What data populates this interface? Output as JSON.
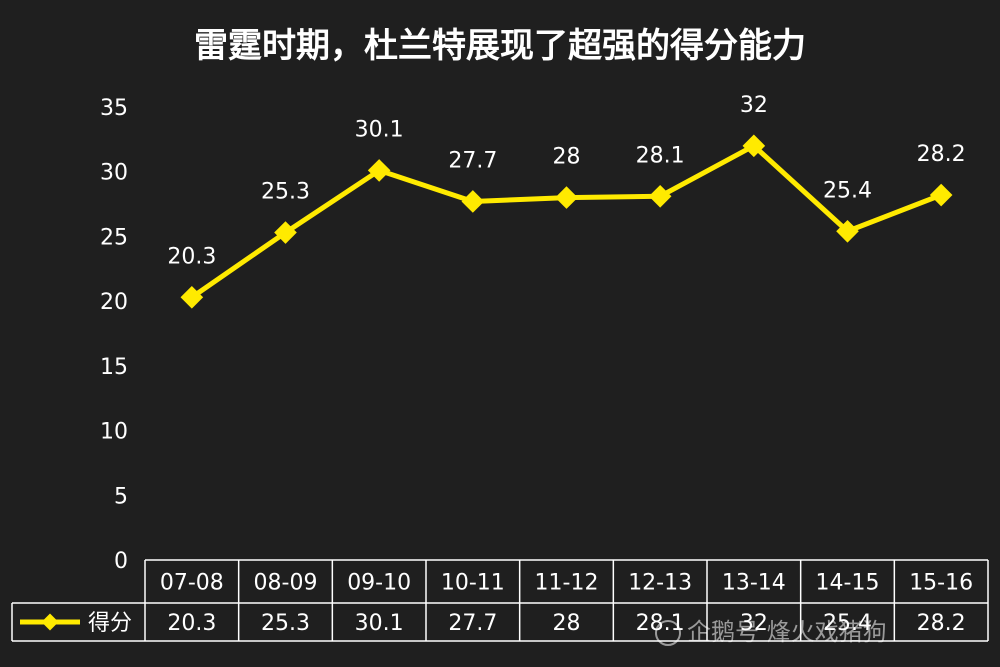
{
  "chart_data": {
    "type": "line",
    "title": "雷霆时期，杜兰特展现了超强的得分能力",
    "categories": [
      "07-08",
      "08-09",
      "09-10",
      "10-11",
      "11-12",
      "12-13",
      "13-14",
      "14-15",
      "15-16"
    ],
    "series": [
      {
        "name": "得分",
        "values": [
          20.3,
          25.3,
          30.1,
          27.7,
          28,
          28.1,
          32,
          25.4,
          28.2
        ]
      }
    ],
    "y_ticks": [
      0,
      5,
      10,
      15,
      20,
      25,
      30,
      35
    ],
    "ylim": [
      0,
      35
    ],
    "grid": false,
    "data_table": true,
    "legend": "table-left",
    "colors": {
      "line": "#ffea00",
      "background": "#1f1f1f",
      "text": "#ffffff",
      "table_border": "#ffffff"
    }
  },
  "watermark": {
    "text": "企鹅号 烽火戏猪狗"
  }
}
